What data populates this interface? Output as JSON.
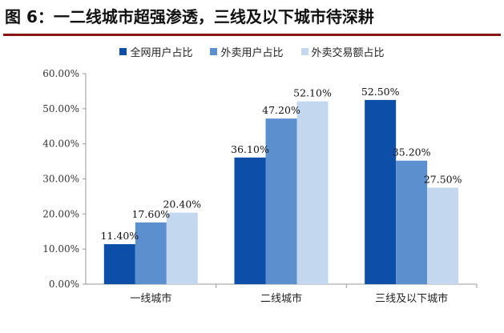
{
  "chart_data": {
    "type": "bar",
    "title": "图 6：一二线城市超强渗透，三线及以下城市待深耕",
    "categories": [
      "一线城市",
      "二线城市",
      "三线及以下城市"
    ],
    "series": [
      {
        "name": "全网用户占比",
        "color": "#0d4fa8",
        "values": [
          11.4,
          36.1,
          52.5
        ],
        "labels": [
          "11.40%",
          "36.10%",
          "52.50%"
        ]
      },
      {
        "name": "外卖用户占比",
        "color": "#5b8fce",
        "values": [
          17.6,
          47.2,
          35.2
        ],
        "labels": [
          "17.60%",
          "47.20%",
          "35.20%"
        ]
      },
      {
        "name": "外卖交易额占比",
        "color": "#c3d7ee",
        "values": [
          20.4,
          52.1,
          27.5
        ],
        "labels": [
          "20.40%",
          "52.10%",
          "27.50%"
        ]
      }
    ],
    "ylim": [
      0,
      60
    ],
    "yticks": [
      "0.00%",
      "10.00%",
      "20.00%",
      "30.00%",
      "40.00%",
      "50.00%",
      "60.00%"
    ],
    "legend": "top",
    "grid": false
  }
}
